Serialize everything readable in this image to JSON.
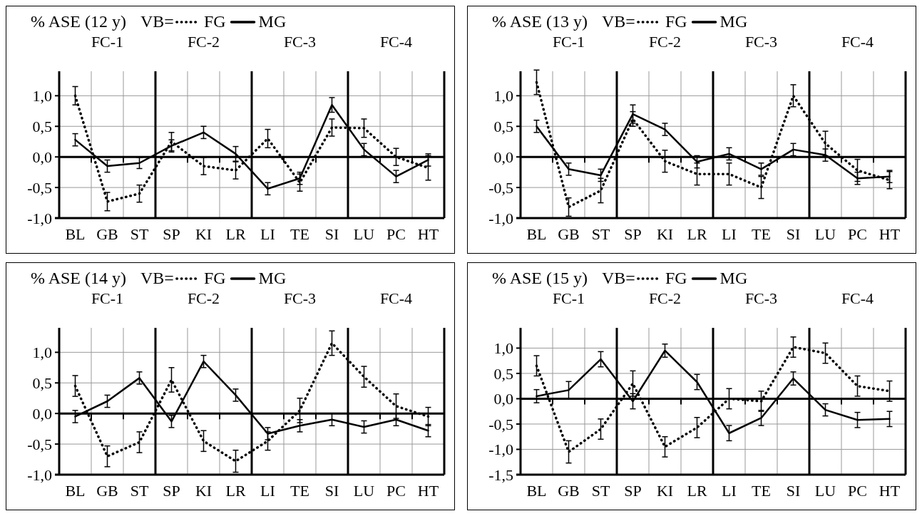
{
  "chart_data": [
    {
      "type": "line",
      "title": "% ASE (12 y)",
      "legend_title": "VB=",
      "legend": "top",
      "grid": true,
      "marker": "none",
      "categories": [
        "BL",
        "GB",
        "ST",
        "SP",
        "KI",
        "LR",
        "LI",
        "TE",
        "SI",
        "LU",
        "PC",
        "HT"
      ],
      "ylim": [
        -1,
        1.4
      ],
      "yticks": [
        {
          "value": -1,
          "label": "-1,0"
        },
        {
          "value": -0.5,
          "label": "-0,5"
        },
        {
          "value": 0,
          "label": "0,0"
        },
        {
          "value": 0.5,
          "label": "0,5"
        },
        {
          "value": 1,
          "label": "1,0"
        }
      ],
      "annotations": [
        "FC-1",
        "FC-2",
        "FC-3",
        "FC-4"
      ],
      "series": [
        {
          "name": "FG",
          "color": "#000000",
          "line_style": "dotted",
          "values": [
            1.0,
            -0.73,
            -0.6,
            0.25,
            -0.15,
            -0.22,
            0.3,
            -0.42,
            0.48,
            0.47,
            0.0,
            -0.18
          ],
          "errors": [
            0.15,
            0.15,
            0.14,
            0.15,
            0.14,
            0.14,
            0.15,
            0.14,
            0.14,
            0.15,
            0.14,
            0.2
          ]
        },
        {
          "name": "MG",
          "color": "#000000",
          "line_style": "solid",
          "values": [
            0.28,
            -0.15,
            -0.1,
            0.18,
            0.4,
            0.05,
            -0.52,
            -0.35,
            0.85,
            0.12,
            -0.32,
            -0.05
          ],
          "errors": [
            0.1,
            0.1,
            0.09,
            0.1,
            0.1,
            0.12,
            0.1,
            0.1,
            0.12,
            0.1,
            0.1,
            0.1
          ]
        }
      ]
    },
    {
      "type": "line",
      "title": "% ASE (13 y)",
      "legend_title": "VB=",
      "legend": "top",
      "grid": true,
      "marker": "none",
      "categories": [
        "BL",
        "GB",
        "ST",
        "SP",
        "KI",
        "LR",
        "LI",
        "TE",
        "SI",
        "LU",
        "PC",
        "HT"
      ],
      "ylim": [
        -1,
        1.4
      ],
      "yticks": [
        {
          "value": -1,
          "label": "-1,0"
        },
        {
          "value": -0.5,
          "label": "-0,5"
        },
        {
          "value": 0,
          "label": "0,0"
        },
        {
          "value": 0.5,
          "label": "0,5"
        },
        {
          "value": 1,
          "label": "1,0"
        }
      ],
      "annotations": [
        "FC-1",
        "FC-2",
        "FC-3",
        "FC-4"
      ],
      "series": [
        {
          "name": "FG",
          "color": "#000000",
          "line_style": "dotted",
          "values": [
            1.22,
            -0.82,
            -0.55,
            0.62,
            -0.07,
            -0.28,
            -0.28,
            -0.5,
            1.0,
            0.22,
            -0.22,
            -0.38
          ],
          "errors": [
            0.2,
            0.15,
            0.2,
            0.12,
            0.18,
            0.18,
            0.18,
            0.18,
            0.18,
            0.2,
            0.18,
            0.14
          ]
        },
        {
          "name": "MG",
          "color": "#000000",
          "line_style": "solid",
          "values": [
            0.5,
            -0.2,
            -0.3,
            0.7,
            0.45,
            -0.08,
            0.05,
            -0.2,
            0.12,
            0.03,
            -0.35,
            -0.32
          ],
          "errors": [
            0.1,
            0.1,
            0.1,
            0.15,
            0.1,
            0.1,
            0.1,
            0.1,
            0.1,
            0.1,
            0.1,
            0.1
          ]
        }
      ]
    },
    {
      "type": "line",
      "title": "% ASE (14 y)",
      "legend_title": "VB=",
      "legend": "top",
      "grid": true,
      "marker": "none",
      "categories": [
        "BL",
        "GB",
        "ST",
        "SP",
        "KI",
        "LR",
        "LI",
        "TE",
        "SI",
        "LU",
        "PC",
        "HT"
      ],
      "ylim": [
        -1,
        1.4
      ],
      "yticks": [
        {
          "value": -1,
          "label": "-1,0"
        },
        {
          "value": -0.5,
          "label": "-0,5"
        },
        {
          "value": 0,
          "label": "0,0"
        },
        {
          "value": 0.5,
          "label": "0,5"
        },
        {
          "value": 1,
          "label": "1,0"
        }
      ],
      "annotations": [
        "FC-1",
        "FC-2",
        "FC-3",
        "FC-4"
      ],
      "series": [
        {
          "name": "FG",
          "color": "#000000",
          "line_style": "dotted",
          "values": [
            0.45,
            -0.7,
            -0.47,
            0.55,
            -0.45,
            -0.78,
            -0.45,
            0.05,
            1.15,
            0.6,
            0.12,
            -0.05
          ],
          "errors": [
            0.17,
            0.17,
            0.17,
            0.2,
            0.17,
            0.18,
            0.15,
            0.2,
            0.2,
            0.17,
            0.2,
            0.15
          ]
        },
        {
          "name": "MG",
          "color": "#000000",
          "line_style": "solid",
          "values": [
            -0.05,
            0.2,
            0.58,
            -0.13,
            0.85,
            0.3,
            -0.33,
            -0.2,
            -0.1,
            -0.22,
            -0.1,
            -0.28
          ],
          "errors": [
            0.1,
            0.1,
            0.1,
            0.1,
            0.1,
            0.1,
            0.1,
            0.1,
            0.1,
            0.1,
            0.1,
            0.1
          ]
        }
      ]
    },
    {
      "type": "line",
      "title": "% ASE (15 y)",
      "legend_title": "VB=",
      "legend": "top",
      "grid": true,
      "marker": "none",
      "categories": [
        "BL",
        "GB",
        "ST",
        "SP",
        "KI",
        "LR",
        "LI",
        "TE",
        "SI",
        "LU",
        "PC",
        "HT"
      ],
      "ylim": [
        -1.5,
        1.4
      ],
      "yticks": [
        {
          "value": -1.5,
          "label": "-1,5"
        },
        {
          "value": -1,
          "label": "-1,0"
        },
        {
          "value": -0.5,
          "label": "-0,5"
        },
        {
          "value": 0,
          "label": "0,0"
        },
        {
          "value": 0.5,
          "label": "0,5"
        },
        {
          "value": 1,
          "label": "1,0"
        }
      ],
      "annotations": [
        "FC-1",
        "FC-2",
        "FC-3",
        "FC-4"
      ],
      "series": [
        {
          "name": "FG",
          "color": "#000000",
          "line_style": "dotted",
          "values": [
            0.65,
            -1.05,
            -0.6,
            0.3,
            -0.95,
            -0.57,
            0.0,
            -0.05,
            1.02,
            0.9,
            0.25,
            0.15
          ],
          "errors": [
            0.2,
            0.22,
            0.2,
            0.25,
            0.2,
            0.2,
            0.2,
            0.2,
            0.2,
            0.2,
            0.2,
            0.2
          ]
        },
        {
          "name": "MG",
          "color": "#000000",
          "line_style": "solid",
          "values": [
            0.05,
            0.17,
            0.78,
            -0.05,
            0.95,
            0.33,
            -0.68,
            -0.38,
            0.4,
            -0.22,
            -0.42,
            -0.4
          ],
          "errors": [
            0.13,
            0.17,
            0.15,
            0.15,
            0.13,
            0.15,
            0.15,
            0.15,
            0.13,
            0.12,
            0.15,
            0.15
          ]
        }
      ]
    }
  ]
}
